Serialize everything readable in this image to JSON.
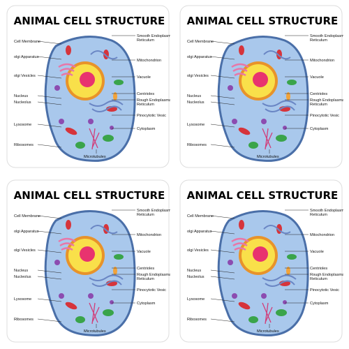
{
  "coaster": {
    "title": "ANIMAL CELL STRUCTURE",
    "labels_left": [
      "Cell Membrane",
      "olgi Apparatus",
      "olgi Vesicles",
      "Nucleus",
      "Nucleolus",
      "Lysosome",
      "Ribosomes"
    ],
    "labels_right": [
      {
        "lines": [
          "Smooth Endoplasmatic",
          "Reticulum"
        ]
      },
      {
        "lines": [
          "Mitochondrion"
        ]
      },
      {
        "lines": [
          "Vacuole"
        ]
      },
      {
        "lines": [
          "Centrioles"
        ]
      },
      {
        "lines": [
          "Rough Endoplasmatic",
          "Reticulum"
        ]
      },
      {
        "lines": [
          "Pinocytotic Vesic"
        ]
      },
      {
        "lines": [
          "Cytoplasm"
        ]
      }
    ],
    "label_bottom": "Microtubules"
  }
}
